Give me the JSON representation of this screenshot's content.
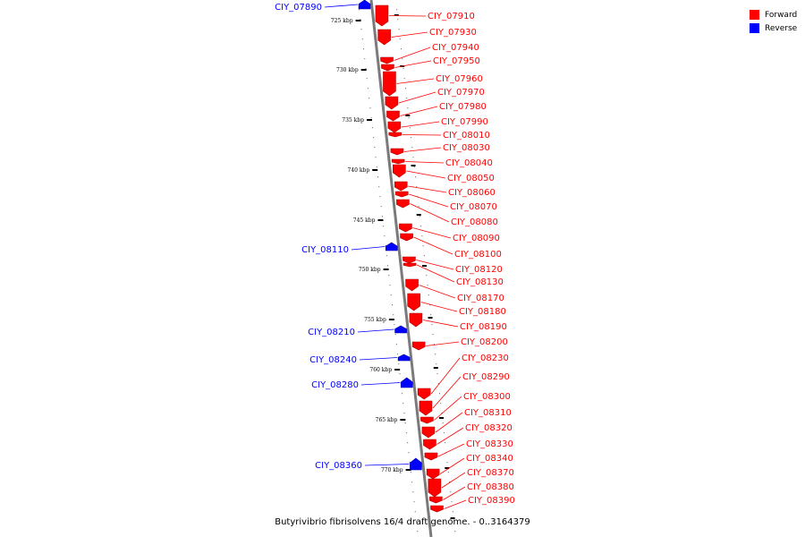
{
  "legend": {
    "forward_label": "Forward",
    "reverse_label": "Reverse",
    "forward_color": "#ff0000",
    "reverse_color": "#0000ff"
  },
  "footer_title": "Butyrivibrio fibrisolvens 16/4 draft genome. - 0..3164379",
  "axis": {
    "line_color": "#888888",
    "ticks": [
      "725 kbp",
      "730 kbp",
      "735 kbp",
      "740 kbp",
      "745 kbp",
      "750 kbp",
      "755 kbp",
      "760 kbp",
      "765 kbp",
      "770 kbp"
    ]
  },
  "forward_genes": [
    "CIY_07910",
    "CIY_07930",
    "CIY_07940",
    "CIY_07950",
    "CIY_07960",
    "CIY_07970",
    "CIY_07980",
    "CIY_07990",
    "CIY_08010",
    "CIY_08030",
    "CIY_08040",
    "CIY_08050",
    "CIY_08060",
    "CIY_08070",
    "CIY_08080",
    "CIY_08090",
    "CIY_08100",
    "CIY_08120",
    "CIY_08130",
    "CIY_08170",
    "CIY_08180",
    "CIY_08190",
    "CIY_08200",
    "CIY_08230",
    "CIY_08290",
    "CIY_08300",
    "CIY_08310",
    "CIY_08320",
    "CIY_08330",
    "CIY_08340",
    "CIY_08370",
    "CIY_08380",
    "CIY_08390"
  ],
  "reverse_genes": [
    "CIY_07890",
    "CIY_08110",
    "CIY_08210",
    "CIY_08240",
    "CIY_08280",
    "CIY_08360"
  ]
}
